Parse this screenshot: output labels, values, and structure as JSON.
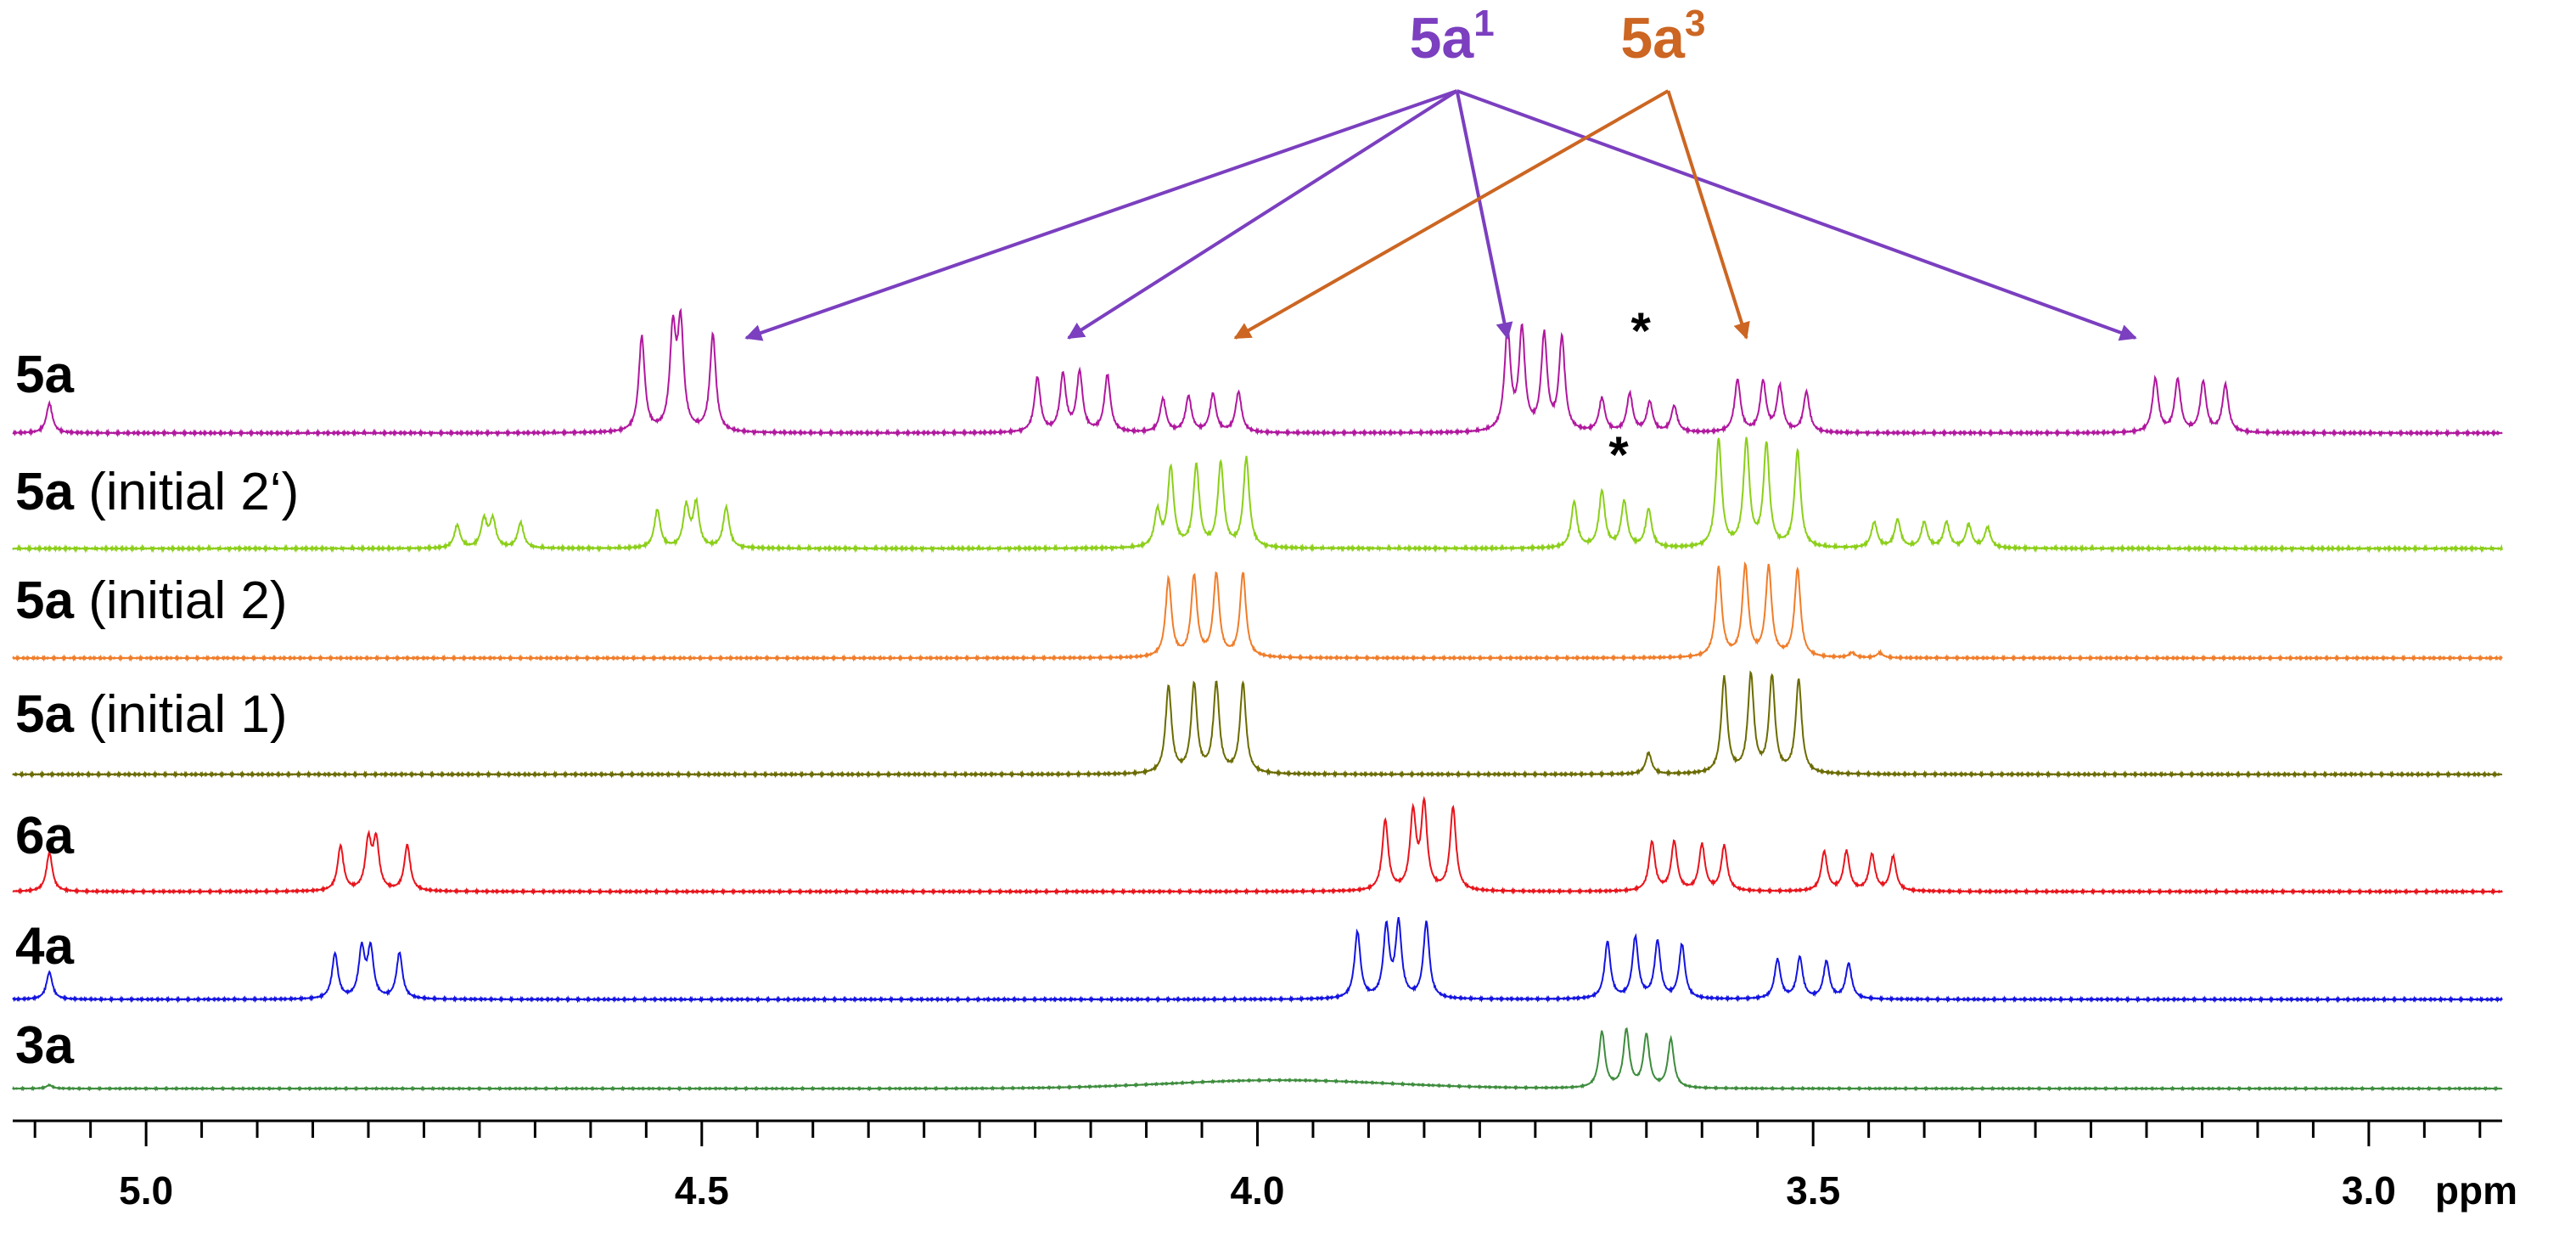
{
  "chart_data": {
    "type": "line",
    "title": "",
    "xlabel": "ppm",
    "ylabel": "",
    "xlim": [
      5.12,
      2.88
    ],
    "x_reversed": true,
    "ticks": [
      {
        "value": 5.0,
        "label": "5.0"
      },
      {
        "value": 4.5,
        "label": "4.5"
      },
      {
        "value": 4.0,
        "label": "4.0"
      },
      {
        "value": 3.5,
        "label": "3.5"
      },
      {
        "value": 3.0,
        "label": "3.0"
      }
    ],
    "minor_tick_step": 0.05,
    "series": [
      {
        "name_bold": "5a",
        "name_rest": "",
        "color": "#b0189e",
        "peaks": [
          {
            "ppm": 5.087,
            "h": 0.25
          },
          {
            "ppm": 4.554,
            "h": 0.8
          },
          {
            "ppm": 4.526,
            "h": 0.82
          },
          {
            "ppm": 4.519,
            "h": 0.87
          },
          {
            "ppm": 4.49,
            "h": 0.82
          },
          {
            "ppm": 4.198,
            "h": 0.46
          },
          {
            "ppm": 4.175,
            "h": 0.48
          },
          {
            "ppm": 4.16,
            "h": 0.5
          },
          {
            "ppm": 4.135,
            "h": 0.48
          },
          {
            "ppm": 4.085,
            "h": 0.28
          },
          {
            "ppm": 4.062,
            "h": 0.3
          },
          {
            "ppm": 4.04,
            "h": 0.32
          },
          {
            "ppm": 4.017,
            "h": 0.34
          },
          {
            "ppm": 3.775,
            "h": 0.85
          },
          {
            "ppm": 3.762,
            "h": 0.84
          },
          {
            "ppm": 3.742,
            "h": 0.8
          },
          {
            "ppm": 3.726,
            "h": 0.78
          },
          {
            "ppm": 3.69,
            "h": 0.28
          },
          {
            "ppm": 3.665,
            "h": 0.32
          },
          {
            "ppm": 3.647,
            "h": 0.25
          },
          {
            "ppm": 3.625,
            "h": 0.22
          },
          {
            "ppm": 3.568,
            "h": 0.44
          },
          {
            "ppm": 3.545,
            "h": 0.42
          },
          {
            "ppm": 3.53,
            "h": 0.38
          },
          {
            "ppm": 3.506,
            "h": 0.34
          },
          {
            "ppm": 3.192,
            "h": 0.45
          },
          {
            "ppm": 3.172,
            "h": 0.44
          },
          {
            "ppm": 3.149,
            "h": 0.42
          },
          {
            "ppm": 3.129,
            "h": 0.4
          }
        ]
      },
      {
        "name_bold": "5a",
        "name_rest": " (initial 2‘)",
        "color": "#8ccf1a",
        "peaks": [
          {
            "ppm": 4.72,
            "h": 0.18
          },
          {
            "ppm": 4.696,
            "h": 0.22
          },
          {
            "ppm": 4.688,
            "h": 0.22
          },
          {
            "ppm": 4.663,
            "h": 0.2
          },
          {
            "ppm": 4.54,
            "h": 0.3
          },
          {
            "ppm": 4.514,
            "h": 0.32
          },
          {
            "ppm": 4.505,
            "h": 0.34
          },
          {
            "ppm": 4.478,
            "h": 0.32
          },
          {
            "ppm": 4.09,
            "h": 0.28
          },
          {
            "ppm": 4.078,
            "h": 0.62
          },
          {
            "ppm": 4.055,
            "h": 0.64
          },
          {
            "ppm": 4.033,
            "h": 0.66
          },
          {
            "ppm": 4.01,
            "h": 0.7
          },
          {
            "ppm": 3.715,
            "h": 0.36
          },
          {
            "ppm": 3.69,
            "h": 0.44
          },
          {
            "ppm": 3.67,
            "h": 0.36
          },
          {
            "ppm": 3.648,
            "h": 0.3
          },
          {
            "ppm": 3.585,
            "h": 0.85
          },
          {
            "ppm": 3.56,
            "h": 0.83
          },
          {
            "ppm": 3.542,
            "h": 0.8
          },
          {
            "ppm": 3.514,
            "h": 0.76
          },
          {
            "ppm": 3.445,
            "h": 0.2
          },
          {
            "ppm": 3.424,
            "h": 0.22
          },
          {
            "ppm": 3.4,
            "h": 0.2
          },
          {
            "ppm": 3.38,
            "h": 0.2
          },
          {
            "ppm": 3.36,
            "h": 0.18
          },
          {
            "ppm": 3.343,
            "h": 0.16
          }
        ]
      },
      {
        "name_bold": "5a",
        "name_rest": " (initial 2)",
        "color": "#f07d2a",
        "peaks": [
          {
            "ppm": 4.08,
            "h": 0.8
          },
          {
            "ppm": 4.057,
            "h": 0.82
          },
          {
            "ppm": 4.037,
            "h": 0.84
          },
          {
            "ppm": 4.013,
            "h": 0.86
          },
          {
            "ppm": 3.585,
            "h": 0.92
          },
          {
            "ppm": 3.561,
            "h": 0.93
          },
          {
            "ppm": 3.54,
            "h": 0.92
          },
          {
            "ppm": 3.514,
            "h": 0.9
          },
          {
            "ppm": 3.465,
            "h": 0.05
          },
          {
            "ppm": 3.44,
            "h": 0.05
          }
        ]
      },
      {
        "name_bold": "5a",
        "name_rest": " (initial 1)",
        "color": "#6b6b00",
        "peaks": [
          {
            "ppm": 4.08,
            "h": 0.82
          },
          {
            "ppm": 4.057,
            "h": 0.83
          },
          {
            "ppm": 4.037,
            "h": 0.84
          },
          {
            "ppm": 4.013,
            "h": 0.85
          },
          {
            "ppm": 3.648,
            "h": 0.2
          },
          {
            "ppm": 3.58,
            "h": 0.9
          },
          {
            "ppm": 3.556,
            "h": 0.92
          },
          {
            "ppm": 3.537,
            "h": 0.9
          },
          {
            "ppm": 3.513,
            "h": 0.88
          }
        ]
      },
      {
        "name_bold": "6a",
        "name_rest": "",
        "color": "#e8141c",
        "peaks": [
          {
            "ppm": 5.087,
            "h": 0.4
          },
          {
            "ppm": 4.825,
            "h": 0.46
          },
          {
            "ppm": 4.8,
            "h": 0.5
          },
          {
            "ppm": 4.793,
            "h": 0.5
          },
          {
            "ppm": 4.765,
            "h": 0.47
          },
          {
            "ppm": 3.885,
            "h": 0.72
          },
          {
            "ppm": 3.86,
            "h": 0.78
          },
          {
            "ppm": 3.85,
            "h": 0.86
          },
          {
            "ppm": 3.824,
            "h": 0.85
          },
          {
            "ppm": 3.645,
            "h": 0.5
          },
          {
            "ppm": 3.625,
            "h": 0.5
          },
          {
            "ppm": 3.6,
            "h": 0.47
          },
          {
            "ppm": 3.58,
            "h": 0.46
          },
          {
            "ppm": 3.49,
            "h": 0.4
          },
          {
            "ppm": 3.47,
            "h": 0.4
          },
          {
            "ppm": 3.447,
            "h": 0.37
          },
          {
            "ppm": 3.428,
            "h": 0.35
          }
        ]
      },
      {
        "name_bold": "4a",
        "name_rest": "",
        "color": "#1414e0",
        "peaks": [
          {
            "ppm": 5.087,
            "h": 0.28
          },
          {
            "ppm": 4.83,
            "h": 0.46
          },
          {
            "ppm": 4.806,
            "h": 0.5
          },
          {
            "ppm": 4.798,
            "h": 0.5
          },
          {
            "ppm": 4.772,
            "h": 0.47
          },
          {
            "ppm": 3.91,
            "h": 0.68
          },
          {
            "ppm": 3.884,
            "h": 0.72
          },
          {
            "ppm": 3.873,
            "h": 0.76
          },
          {
            "ppm": 3.848,
            "h": 0.78
          },
          {
            "ppm": 3.685,
            "h": 0.58
          },
          {
            "ppm": 3.66,
            "h": 0.62
          },
          {
            "ppm": 3.64,
            "h": 0.58
          },
          {
            "ppm": 3.618,
            "h": 0.55
          },
          {
            "ppm": 3.532,
            "h": 0.4
          },
          {
            "ppm": 3.512,
            "h": 0.42
          },
          {
            "ppm": 3.488,
            "h": 0.38
          },
          {
            "ppm": 3.468,
            "h": 0.36
          }
        ]
      },
      {
        "name_bold": "3a",
        "name_rest": "",
        "color": "#3d8c3d",
        "peaks": [
          {
            "ppm": 5.087,
            "h": 0.05
          },
          {
            "ppm": 3.69,
            "h": 0.8
          },
          {
            "ppm": 3.668,
            "h": 0.82
          },
          {
            "ppm": 3.65,
            "h": 0.75
          },
          {
            "ppm": 3.628,
            "h": 0.7
          }
        ],
        "humps": [
          {
            "ppm": 3.98,
            "h": 0.12,
            "w": 0.14
          }
        ]
      }
    ],
    "annotations": [
      {
        "label_main": "5a",
        "label_sup": "1",
        "color": "#7b3fbf",
        "label_ppm": 3.825,
        "targets_ppm": [
          4.46,
          4.17,
          3.775,
          3.21
        ]
      },
      {
        "label_main": "5a",
        "label_sup": "3",
        "color": "#cc6622",
        "label_ppm": 3.635,
        "targets_ppm": [
          4.02,
          3.56
        ]
      }
    ],
    "asterisks": [
      {
        "text": "*",
        "ppm": 3.655,
        "series_index": 0
      },
      {
        "text": "*",
        "ppm": 3.675,
        "series_index": 1
      }
    ]
  }
}
